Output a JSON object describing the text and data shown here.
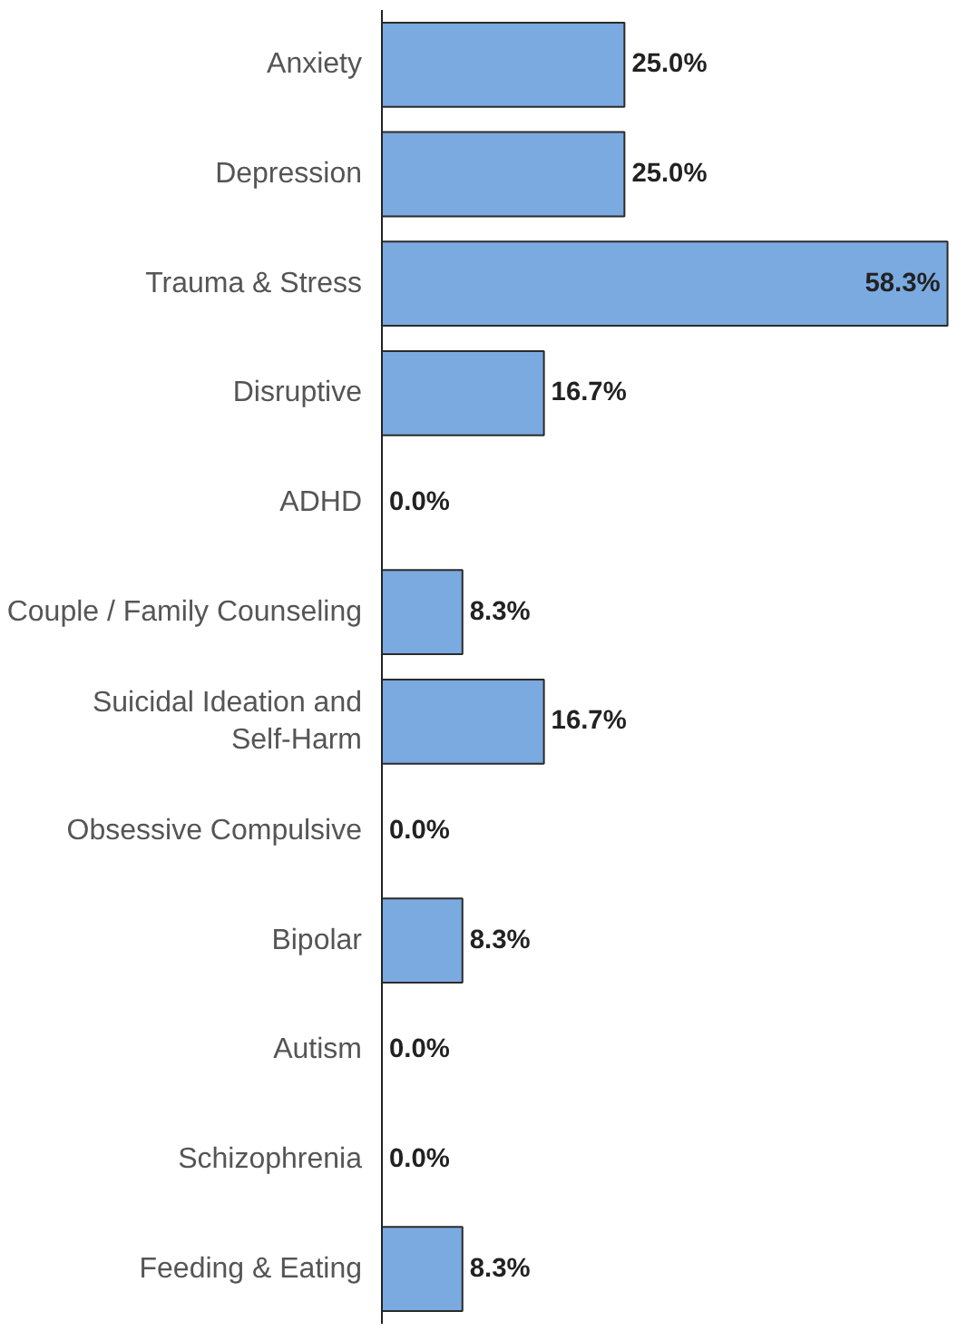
{
  "chart_data": {
    "type": "bar",
    "orientation": "horizontal",
    "categories": [
      "Anxiety",
      "Depression",
      "Trauma & Stress",
      "Disruptive",
      "ADHD",
      "Couple / Family Counseling",
      "Suicidal Ideation and\nSelf-Harm",
      "Obsessive Compulsive",
      "Bipolar",
      "Autism",
      "Schizophrenia",
      "Feeding & Eating"
    ],
    "values": [
      25,
      25,
      58.3,
      16.7,
      0,
      8.3,
      16.7,
      0,
      8.3,
      0,
      0,
      8.3
    ],
    "value_labels": [
      "25.0%",
      "25.0%",
      "58.3%",
      "16.7%",
      "0.0%",
      "8.3%",
      "16.7%",
      "0.0%",
      "8.3%",
      "0.0%",
      "0.0%",
      "8.3%"
    ],
    "color": "#7aaae0",
    "tick_labels": "y"
  }
}
